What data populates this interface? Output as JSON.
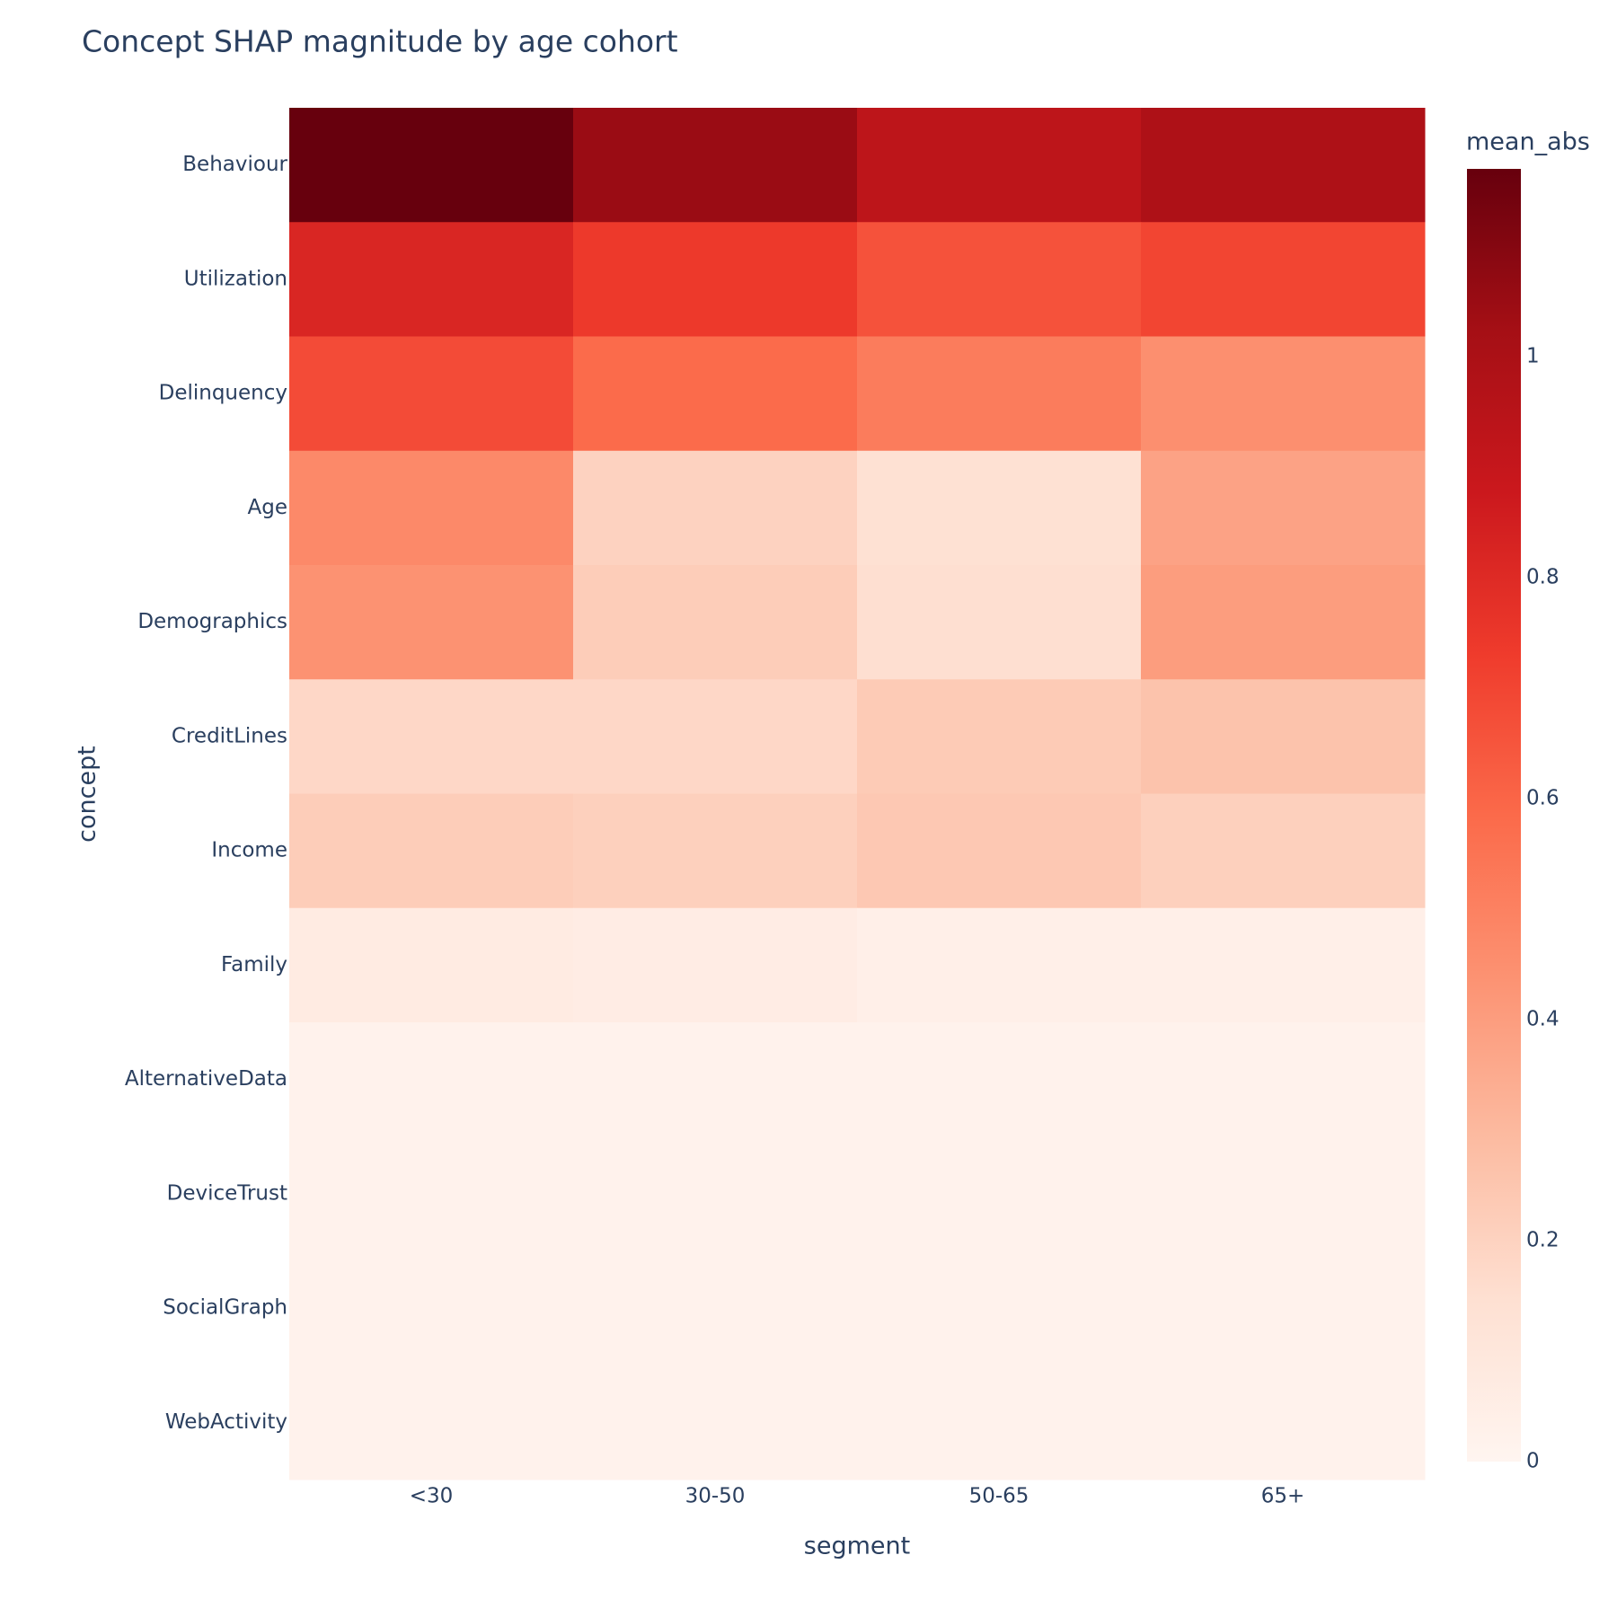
{
  "chart_data": {
    "type": "heatmap",
    "title": "Concept SHAP magnitude by age cohort",
    "x_label": "segment",
    "y_label": "concept",
    "x": [
      "<30",
      "30-50",
      "50-65",
      "65+"
    ],
    "y": [
      "Behaviour",
      "Utilization",
      "Delinquency",
      "Age",
      "Demographics",
      "CreditLines",
      "Income",
      "Family",
      "AlternativeData",
      "DeviceTrust",
      "SocialGraph",
      "WebActivity"
    ],
    "z": [
      [
        1.17,
        1.05,
        0.93,
        0.99
      ],
      [
        0.82,
        0.74,
        0.66,
        0.7
      ],
      [
        0.68,
        0.58,
        0.52,
        0.45
      ],
      [
        0.47,
        0.2,
        0.14,
        0.38
      ],
      [
        0.44,
        0.22,
        0.15,
        0.4
      ],
      [
        0.18,
        0.18,
        0.23,
        0.26
      ],
      [
        0.22,
        0.21,
        0.24,
        0.21
      ],
      [
        0.07,
        0.06,
        0.04,
        0.04
      ],
      [
        0.02,
        0.02,
        0.02,
        0.02
      ],
      [
        0.02,
        0.02,
        0.02,
        0.02
      ],
      [
        0.02,
        0.02,
        0.02,
        0.02
      ],
      [
        0.02,
        0.02,
        0.02,
        0.02
      ]
    ],
    "colorbar_title": "mean_abs",
    "zlim": [
      0,
      1.17
    ],
    "zticks": [
      0,
      0.2,
      0.4,
      0.6,
      0.8,
      1
    ],
    "colorscale": [
      "#fff5f0",
      "#fee0d2",
      "#fcbba1",
      "#fc9272",
      "#fb6a4a",
      "#ef3b2c",
      "#cb181d",
      "#a50f15",
      "#67000d"
    ]
  }
}
